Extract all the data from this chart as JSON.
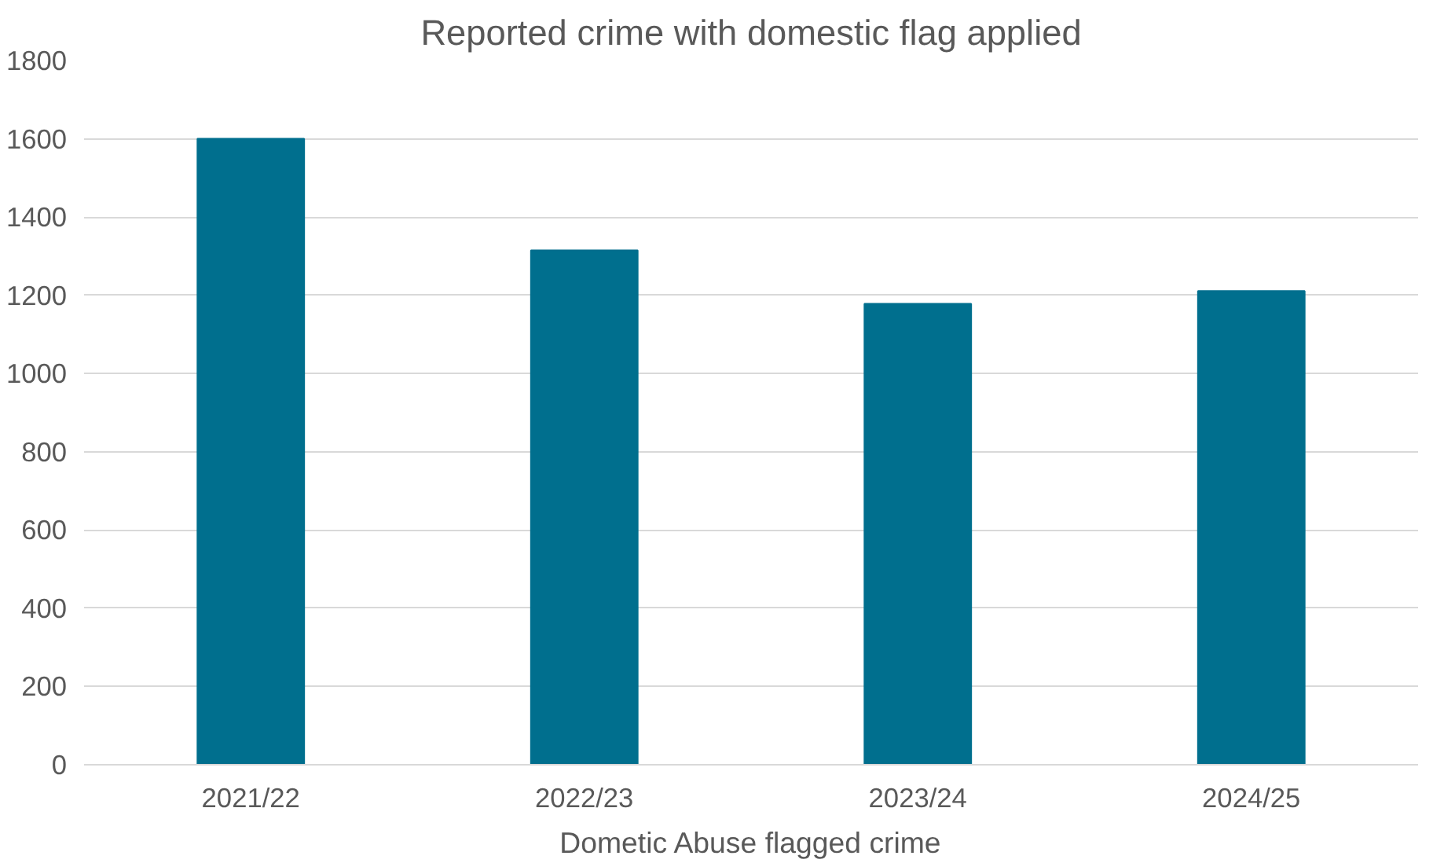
{
  "chart_data": {
    "type": "bar",
    "title": "Reported crime with domestic flag applied",
    "xlabel": "Dometic Abuse flagged crime",
    "categories": [
      "2021/22",
      "2022/23",
      "2023/24",
      "2024/25"
    ],
    "values": [
      1600,
      1315,
      1178,
      1211
    ],
    "color": "#006f8e",
    "ylim": [
      0,
      1800
    ],
    "yticks": [
      0,
      200,
      400,
      600,
      800,
      1000,
      1200,
      1400,
      1600,
      1800
    ],
    "grid": "y"
  }
}
